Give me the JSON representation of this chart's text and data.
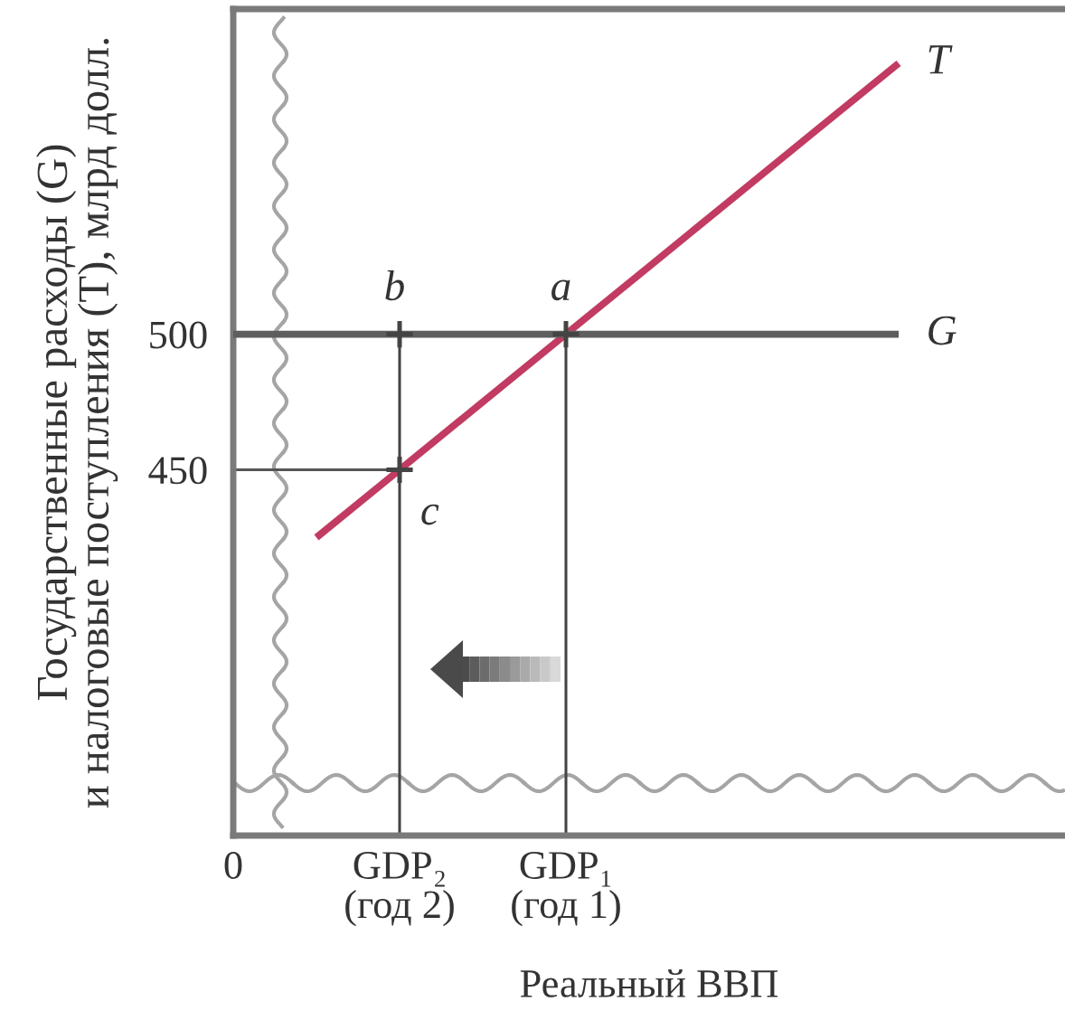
{
  "chart_data": {
    "type": "line",
    "xlabel": "Реальный ВВП",
    "ylabel": "Государственные расходы (G)\nи налоговые поступления (T), млрд долл.",
    "categories": [
      "0",
      null,
      "GDP₂\n(год 2)",
      null,
      "GDP₁\n(год 1)",
      null,
      null,
      null,
      null,
      null
    ],
    "ylim": [
      315,
      620
    ],
    "yticks": [
      450,
      500
    ],
    "series": [
      {
        "name": "T",
        "color": "#c23b62",
        "values": [
          null,
          425,
          450,
          475,
          500,
          525,
          550,
          575,
          600,
          null
        ]
      },
      {
        "name": "G",
        "color": "#5e5e5e",
        "values": [
          500,
          500,
          500,
          500,
          500,
          500,
          500,
          500,
          500,
          null
        ]
      },
      {
        "color": "#555555",
        "values": [
          450,
          450,
          450,
          null,
          null,
          null,
          null,
          null,
          null,
          null
        ]
      },
      {
        "type": "lollipop",
        "marker": "cross",
        "color": "#444444",
        "values": [
          null,
          null,
          500,
          null,
          500,
          null,
          null,
          null,
          null,
          null
        ]
      },
      {
        "type": "scatter",
        "marker": "cross",
        "color": "#444444",
        "values": [
          null,
          null,
          450,
          null,
          null,
          null,
          null,
          null,
          null,
          null
        ]
      }
    ],
    "annotations": [
      {
        "text": "a",
        "x": "GDP₁\n(год 1)",
        "y": 500
      },
      {
        "text": "b",
        "x": "GDP₂\n(год 2)",
        "y": 500
      },
      {
        "text": "c",
        "x": "GDP₂\n(год 2)",
        "y": 450
      }
    ]
  }
}
